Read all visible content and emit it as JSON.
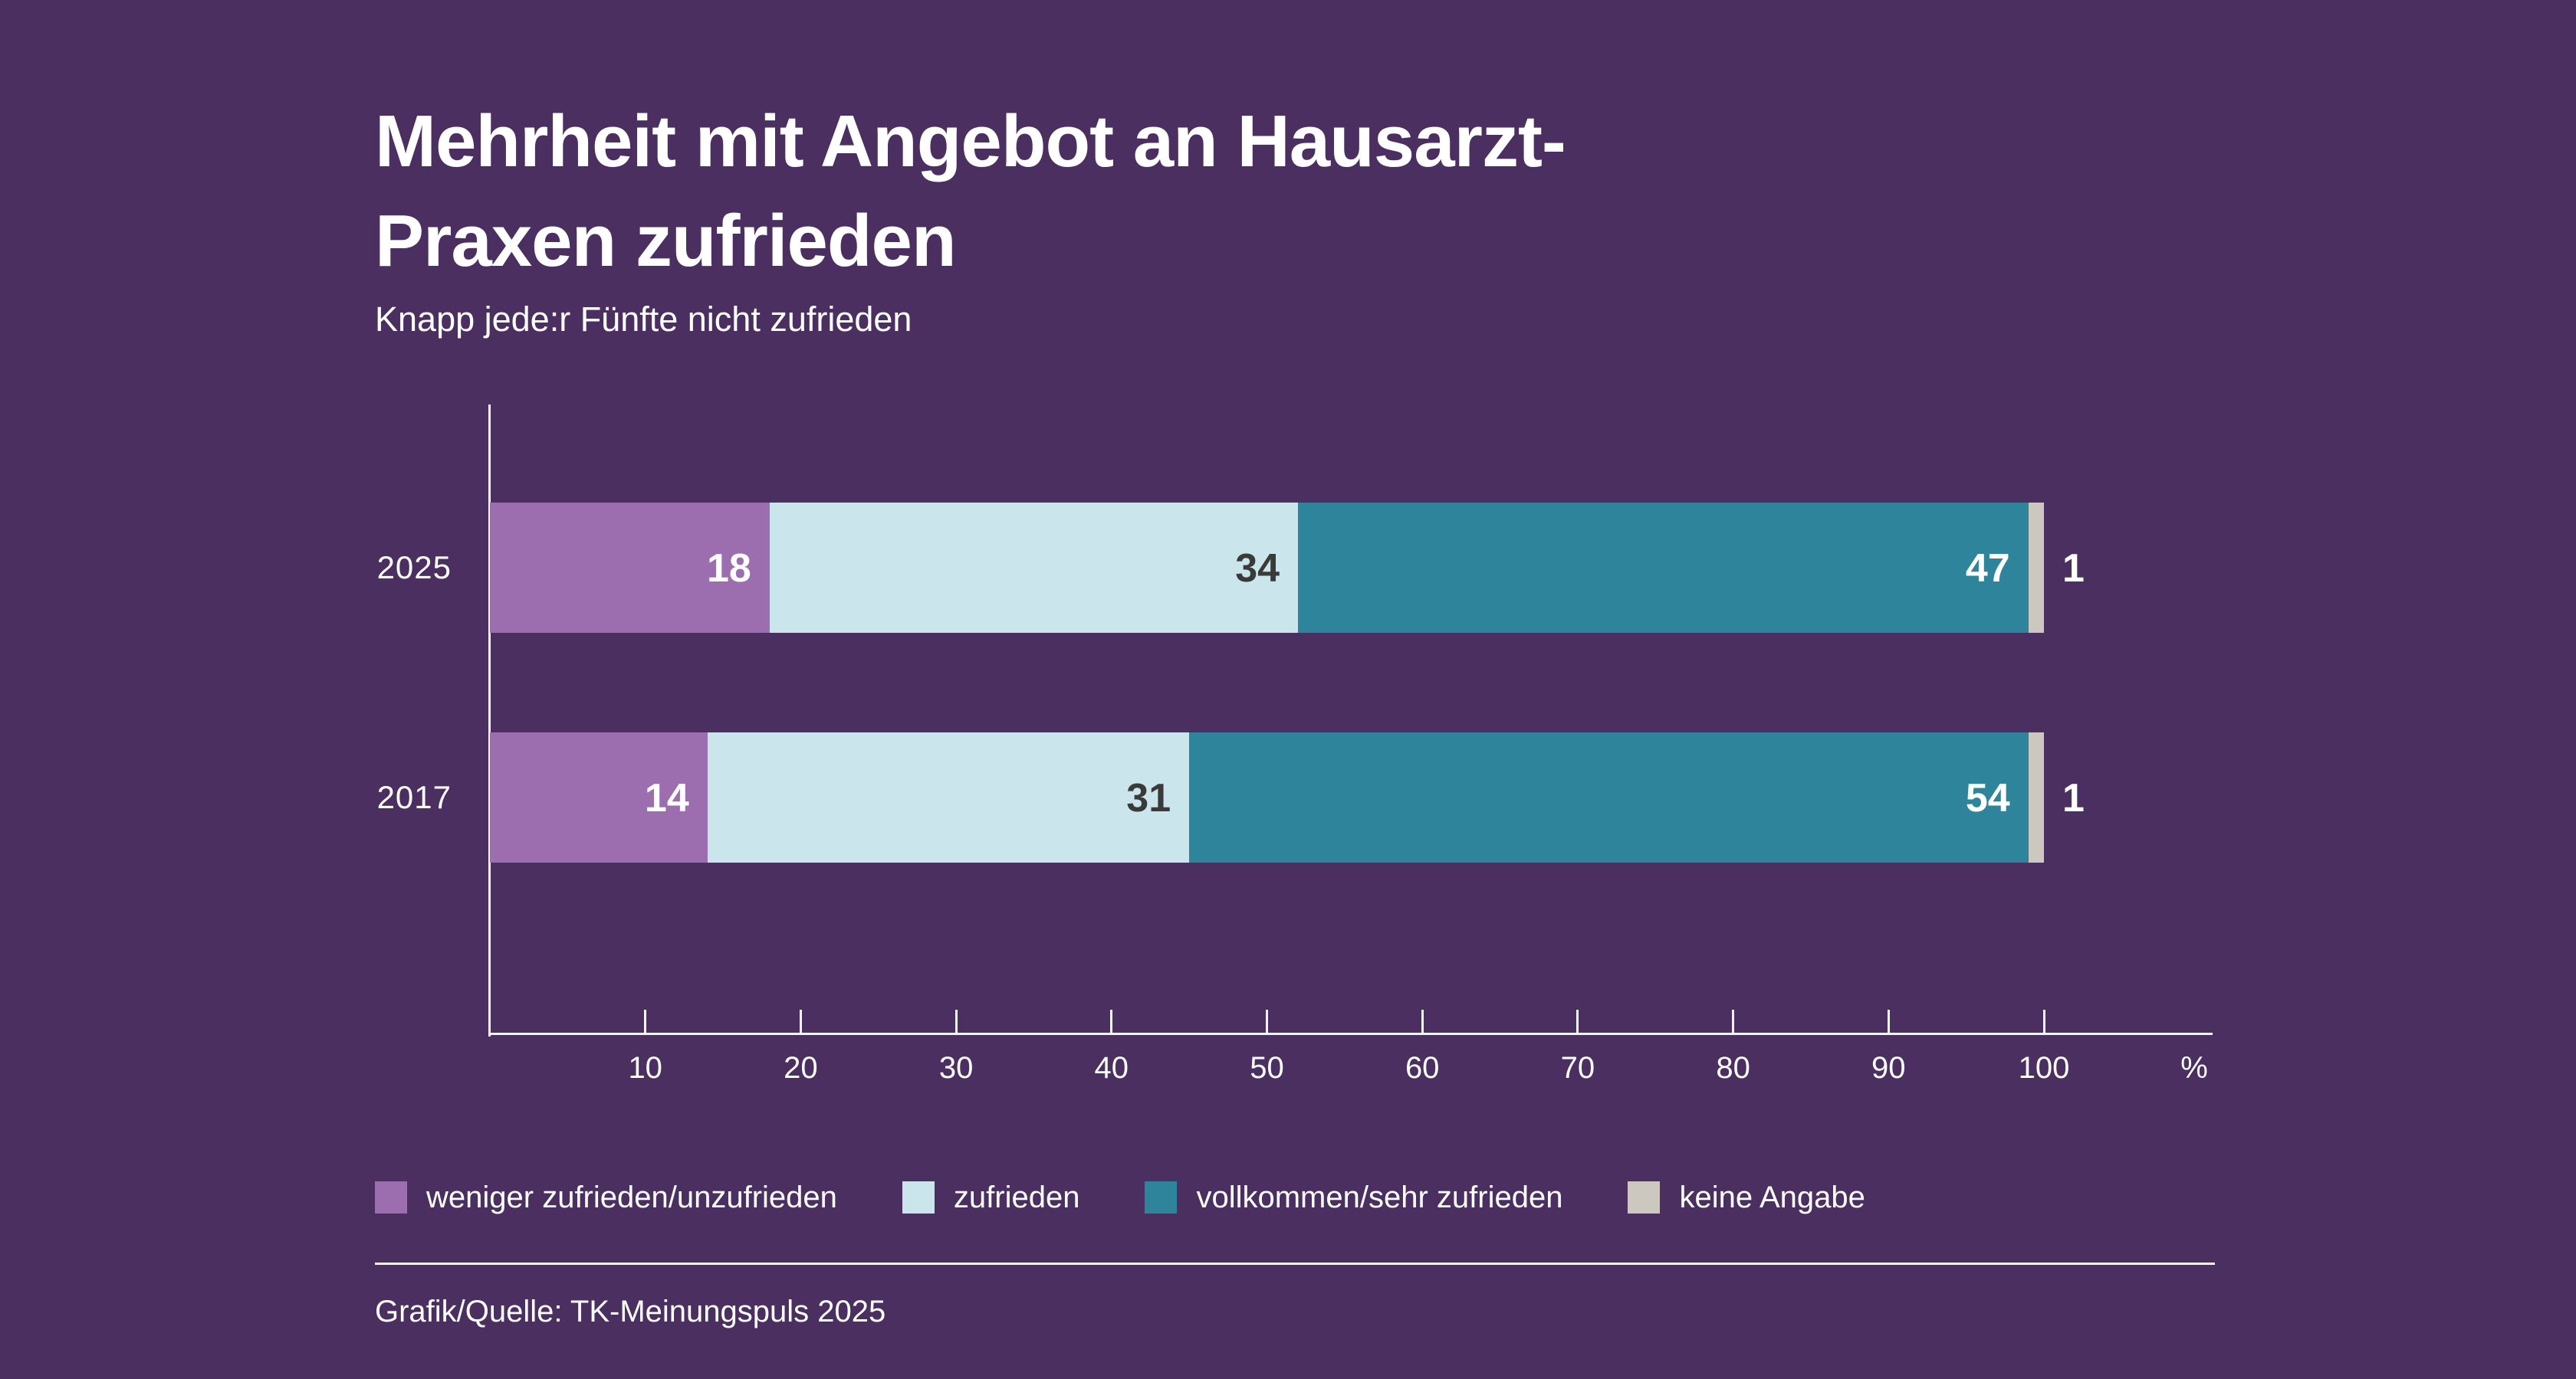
{
  "background_color": "#4A2F60",
  "text_color": "#FFFFFF",
  "axis_color": "#F7F4F7",
  "header": {
    "title_lines": [
      "Mehrheit mit Angebot an Hausarzt-",
      "Praxen zufrieden"
    ],
    "subtitle": "Knapp jede:r Fünfte nicht zufrieden"
  },
  "chart_data": {
    "type": "bar",
    "orientation": "horizontal",
    "stacked": true,
    "title": "Mehrheit mit Angebot an Hausarzt-Praxen zufrieden",
    "subtitle": "Knapp jede:r Fünfte nicht zufrieden",
    "categories": [
      "2025",
      "2017"
    ],
    "series": [
      {
        "name": "weniger zufrieden/unzufrieden",
        "color": "#9D6EAF",
        "label_color": "#FFFFFF",
        "label_outside": false,
        "values": [
          18,
          14
        ]
      },
      {
        "name": "zufrieden",
        "color": "#CBE5EC",
        "label_color": "#3A3A39",
        "label_outside": false,
        "values": [
          34,
          31
        ]
      },
      {
        "name": "vollkommen/sehr zufrieden",
        "color": "#2D849B",
        "label_color": "#FFFFFF",
        "label_outside": false,
        "values": [
          47,
          54
        ]
      },
      {
        "name": "keine Angabe",
        "color": "#CCC7BF",
        "label_color": "#FFFFFF",
        "label_outside": true,
        "values": [
          1,
          1
        ]
      }
    ],
    "xlim": [
      0,
      100
    ],
    "x_ticks": [
      10,
      20,
      30,
      40,
      50,
      60,
      70,
      80,
      90,
      100
    ],
    "x_axis_suffix": "%",
    "xlabel": "",
    "ylabel": "",
    "grid": false,
    "legend_position": "bottom"
  },
  "footer": {
    "source": "Grafik/Quelle: TK-Meinungspuls 2025"
  }
}
